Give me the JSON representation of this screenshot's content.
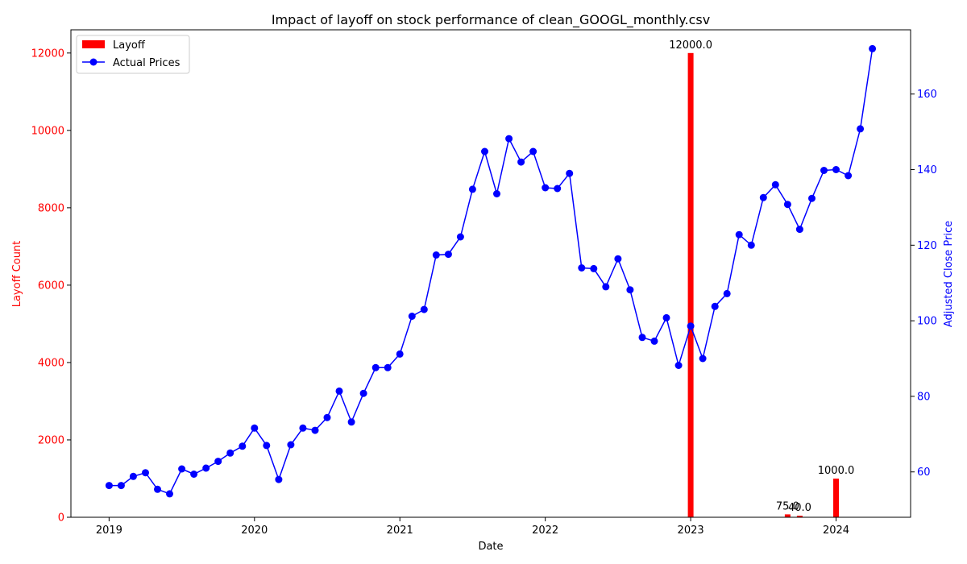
{
  "chart_data": {
    "type": "bar+line",
    "title": "Impact of layoff on stock performance of clean_GOOGL_monthly.csv",
    "xlabel": "Date",
    "ylabel_left": "Layoff Count",
    "ylabel_right": "Adjusted Close Price",
    "x_ticks": [
      "2019",
      "2020",
      "2021",
      "2022",
      "2023",
      "2024"
    ],
    "y_left_ticks": [
      "0",
      "2000",
      "4000",
      "6000",
      "8000",
      "10000",
      "12000"
    ],
    "y_right_ticks": [
      "60",
      "80",
      "100",
      "120",
      "140",
      "160"
    ],
    "y_left_lim": [
      0,
      12600
    ],
    "y_right_lim": [
      48,
      177
    ],
    "grid": false,
    "legend_position": "upper-left",
    "legend": [
      {
        "name": "Layoff",
        "kind": "bar",
        "color": "#ff0000"
      },
      {
        "name": "Actual Prices",
        "kind": "line-marker",
        "color": "#0000ff"
      }
    ],
    "colors": {
      "layoff": "#ff0000",
      "price": "#0000ff",
      "left_axis": "#ff0000",
      "right_axis": "#0000ff"
    },
    "layoff_series": {
      "name": "Layoff",
      "points": [
        {
          "date": "2023-01",
          "value": 12000,
          "label": "12000.0"
        },
        {
          "date": "2023-09",
          "value": 75,
          "label": "75.0"
        },
        {
          "date": "2023-10",
          "value": 40,
          "label": "40.0"
        },
        {
          "date": "2024-01",
          "value": 1000,
          "label": "1000.0"
        }
      ]
    },
    "price_series": {
      "name": "Actual Prices",
      "dates": [
        "2019-01",
        "2019-02",
        "2019-03",
        "2019-04",
        "2019-05",
        "2019-06",
        "2019-07",
        "2019-08",
        "2019-09",
        "2019-10",
        "2019-11",
        "2019-12",
        "2020-01",
        "2020-02",
        "2020-03",
        "2020-04",
        "2020-05",
        "2020-06",
        "2020-07",
        "2020-08",
        "2020-09",
        "2020-10",
        "2020-11",
        "2020-12",
        "2021-01",
        "2021-02",
        "2021-03",
        "2021-04",
        "2021-05",
        "2021-06",
        "2021-07",
        "2021-08",
        "2021-09",
        "2021-10",
        "2021-11",
        "2021-12",
        "2022-01",
        "2022-02",
        "2022-03",
        "2022-04",
        "2022-05",
        "2022-06",
        "2022-07",
        "2022-08",
        "2022-09",
        "2022-10",
        "2022-11",
        "2022-12",
        "2023-01",
        "2023-02",
        "2023-03",
        "2023-04",
        "2023-05",
        "2023-06",
        "2023-07",
        "2023-08",
        "2023-09",
        "2023-10",
        "2023-11",
        "2023-12",
        "2024-01",
        "2024-02",
        "2024-03",
        "2024-04"
      ],
      "values": [
        56.4,
        56.4,
        58.8,
        59.8,
        55.4,
        54.2,
        60.8,
        59.4,
        61.0,
        62.8,
        65.0,
        66.8,
        71.6,
        67.0,
        58.0,
        67.2,
        71.6,
        71.0,
        74.4,
        81.4,
        73.2,
        80.8,
        87.6,
        87.6,
        91.2,
        101.2,
        103.0,
        117.4,
        117.6,
        122.2,
        134.8,
        144.8,
        133.6,
        148.2,
        142.0,
        144.8,
        135.2,
        135.0,
        139.0,
        114.0,
        113.8,
        109.0,
        116.4,
        108.2,
        95.6,
        94.6,
        100.8,
        88.2,
        98.6,
        90.0,
        103.8,
        107.2,
        122.8,
        120.0,
        132.6,
        136.0,
        130.8,
        124.2,
        132.4,
        139.8,
        140.0,
        138.4,
        150.8,
        172.0
      ]
    }
  }
}
